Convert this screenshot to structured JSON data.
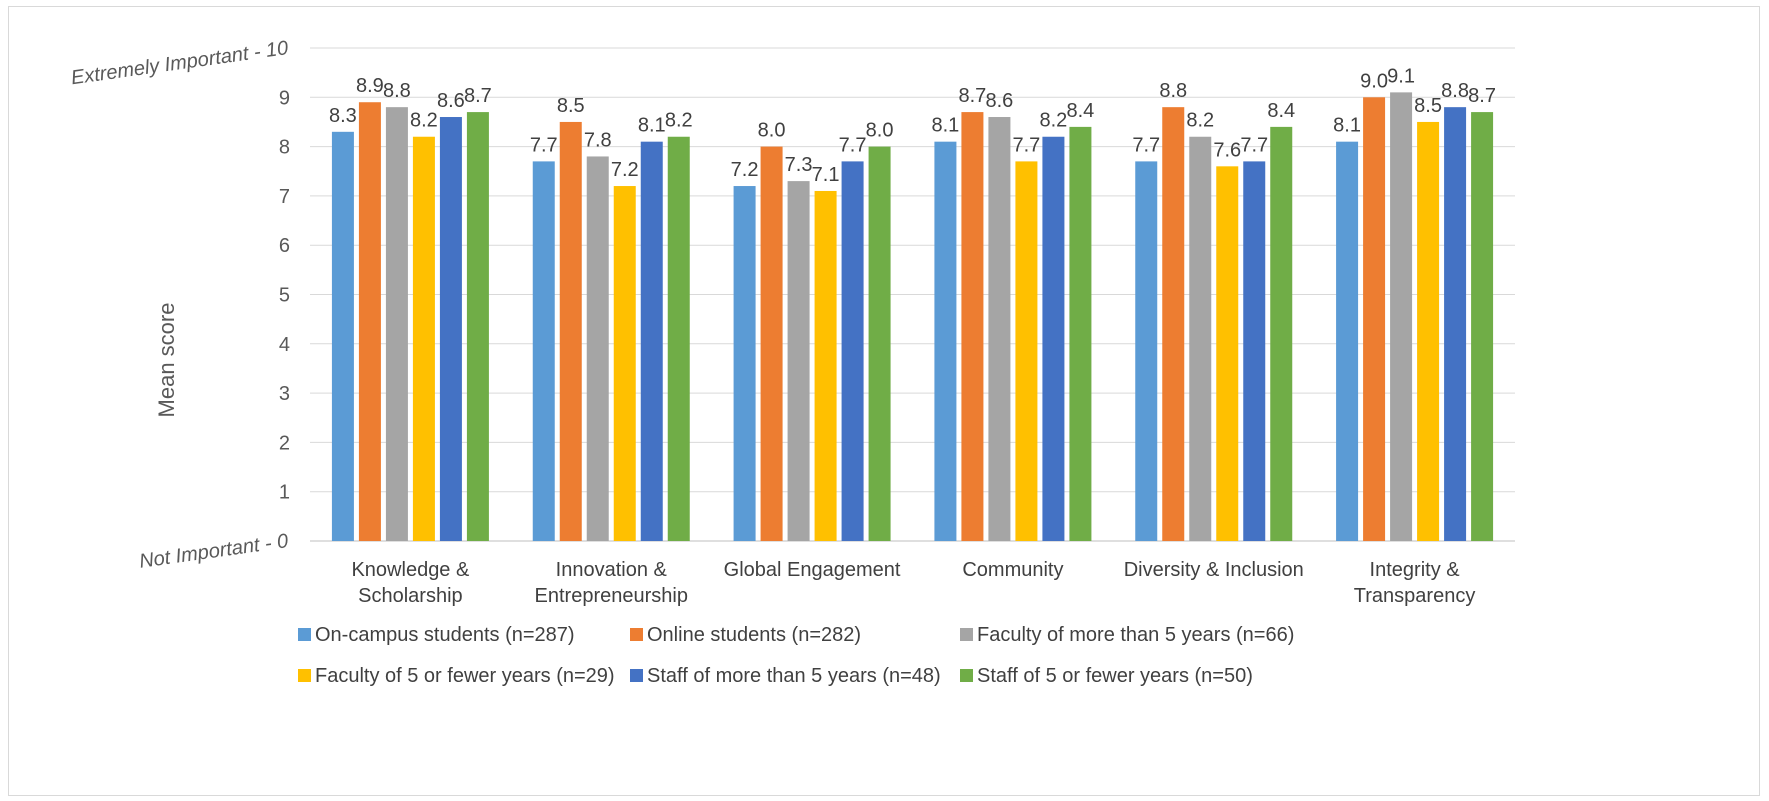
{
  "chart_data": {
    "type": "bar",
    "title": "",
    "xlabel": "",
    "ylabel": "Mean score",
    "ylim": [
      0,
      10
    ],
    "yticks": [
      0,
      1,
      2,
      3,
      4,
      5,
      6,
      7,
      8,
      9,
      10
    ],
    "ytick_labels": [
      "Not Important - 0",
      "1",
      "2",
      "3",
      "4",
      "5",
      "6",
      "7",
      "8",
      "9",
      "Extremely Important - 10"
    ],
    "grid": true,
    "legend_position": "bottom",
    "categories": [
      [
        "Knowledge &",
        "Scholarship"
      ],
      [
        "Innovation &",
        "Entrepreneurship"
      ],
      [
        "Global Engagement"
      ],
      [
        "Community"
      ],
      [
        "Diversity & Inclusion"
      ],
      [
        "Integrity &",
        "Transparency"
      ]
    ],
    "series": [
      {
        "name": "On-campus students (n=287)",
        "color": "#5b9bd5",
        "values": [
          8.3,
          7.7,
          7.2,
          8.1,
          7.7,
          8.1
        ]
      },
      {
        "name": "Online students (n=282)",
        "color": "#ed7d31",
        "values": [
          8.9,
          8.5,
          8.0,
          8.7,
          8.8,
          9.0
        ]
      },
      {
        "name": "Faculty of more than 5 years (n=66)",
        "color": "#a5a5a5",
        "values": [
          8.8,
          7.8,
          7.3,
          8.6,
          8.2,
          9.1
        ]
      },
      {
        "name": "Faculty of 5 or fewer years (n=29)",
        "color": "#ffc000",
        "values": [
          8.2,
          7.2,
          7.1,
          7.7,
          7.6,
          8.5
        ]
      },
      {
        "name": "Staff of more than 5 years (n=48)",
        "color": "#4472c4",
        "values": [
          8.6,
          8.1,
          7.7,
          8.2,
          7.7,
          8.8
        ]
      },
      {
        "name": "Staff of 5 or fewer years (n=50)",
        "color": "#70ad47",
        "values": [
          8.7,
          8.2,
          8.0,
          8.4,
          8.4,
          8.7
        ]
      }
    ]
  }
}
